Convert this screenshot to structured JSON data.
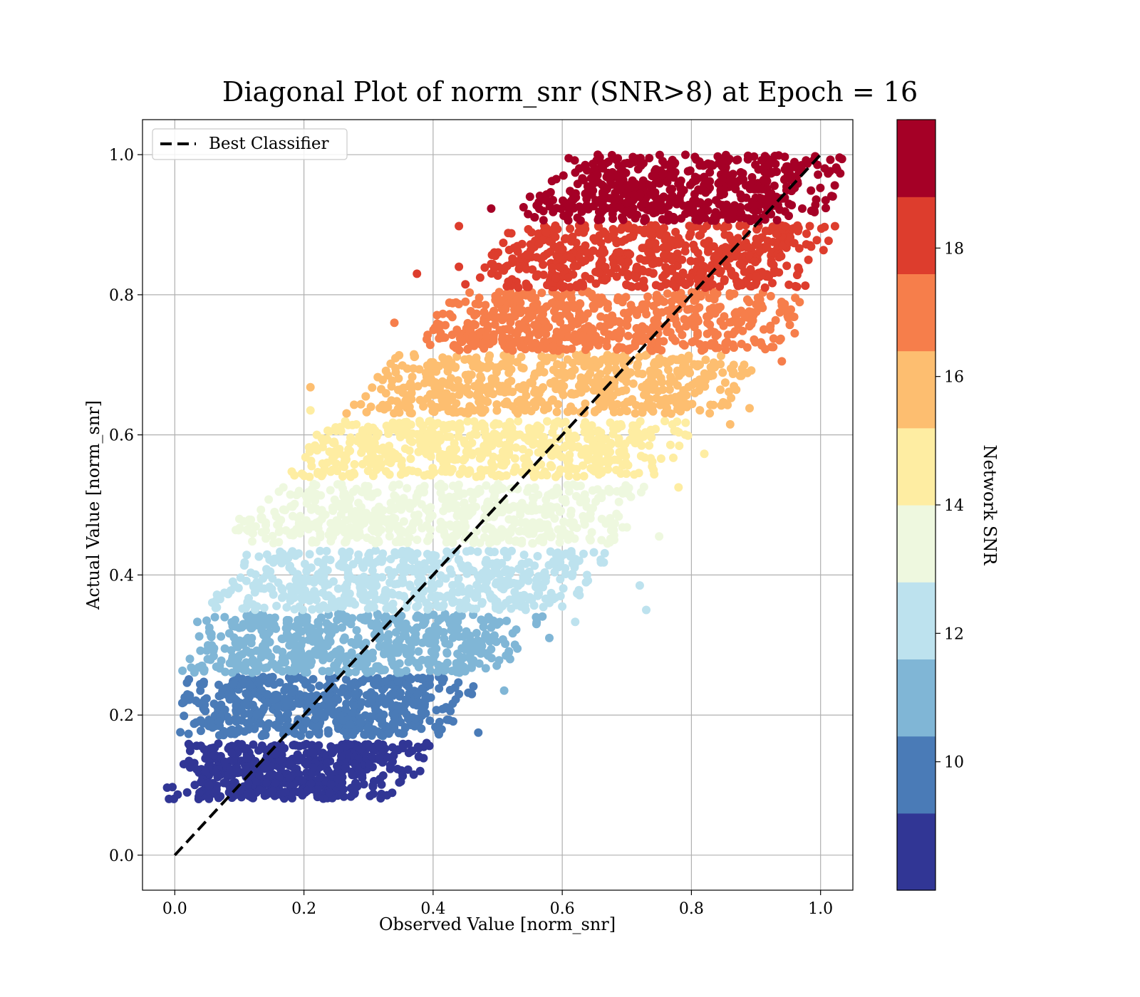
{
  "chart_data": {
    "type": "scatter",
    "title": "Diagonal Plot of norm_snr (SNR>8) at Epoch = 16",
    "xlabel": "Observed Value [norm_snr]",
    "ylabel": "Actual Value [norm_snr]",
    "xlim": [
      -0.05,
      1.05
    ],
    "ylim": [
      -0.05,
      1.05
    ],
    "xticks": [
      "0.0",
      "0.2",
      "0.4",
      "0.6",
      "0.8",
      "1.0"
    ],
    "yticks": [
      "0.0",
      "0.2",
      "0.4",
      "0.6",
      "0.8",
      "1.0"
    ],
    "grid": true,
    "legend": {
      "position": "top-left",
      "entries": [
        "Best Classifier"
      ]
    },
    "reference_line": {
      "name": "Best Classifier",
      "style": "dashed",
      "color": "#000000",
      "points": [
        [
          0,
          0
        ],
        [
          1,
          1
        ]
      ]
    },
    "colorbar": {
      "label": "Network SNR",
      "range": [
        8,
        20
      ],
      "ticks": [
        "10",
        "12",
        "14",
        "16",
        "18"
      ],
      "colors": [
        "#313695",
        "#4a7bb7",
        "#80b6d6",
        "#bde2ee",
        "#eef8df",
        "#feeda2",
        "#fdbe70",
        "#f67e4b",
        "#dd3d2d",
        "#a50026"
      ]
    },
    "bands": [
      {
        "snr": [
          8,
          9.2
        ],
        "y": [
          0.08,
          0.16
        ],
        "x_left": [
          0.02,
          0.05
        ],
        "x_right": [
          0.28,
          0.36
        ],
        "outliers": [
          [
            0.39,
            0.16
          ],
          [
            0.38,
            0.12
          ],
          [
            0.35,
            0.105
          ],
          [
            0.37,
            0.115
          ]
        ]
      },
      {
        "snr": [
          9.2,
          10.4
        ],
        "y": [
          0.17,
          0.255
        ],
        "x_left": [
          0.04,
          0.06
        ],
        "x_right": [
          0.37,
          0.43
        ],
        "outliers": [
          [
            0.47,
            0.175
          ],
          [
            0.46,
            0.23
          ],
          [
            0.44,
            0.23
          ],
          [
            0.41,
            0.19
          ]
        ]
      },
      {
        "snr": [
          10.4,
          11.6
        ],
        "y": [
          0.26,
          0.345
        ],
        "x_left": [
          0.05,
          0.09
        ],
        "x_right": [
          0.46,
          0.53
        ],
        "outliers": [
          [
            0.58,
            0.31
          ],
          [
            0.51,
            0.235
          ],
          [
            0.56,
            0.33
          ],
          [
            0.035,
            0.333
          ]
        ]
      },
      {
        "snr": [
          11.6,
          12.8
        ],
        "y": [
          0.35,
          0.435
        ],
        "x_left": [
          0.09,
          0.15
        ],
        "x_right": [
          0.56,
          0.63
        ],
        "outliers": [
          [
            0.73,
            0.35
          ],
          [
            0.72,
            0.385
          ],
          [
            0.62,
            0.333
          ],
          [
            0.6,
            0.355
          ],
          [
            0.66,
            0.418
          ]
        ]
      },
      {
        "snr": [
          12.8,
          14
        ],
        "y": [
          0.445,
          0.53
        ],
        "x_left": [
          0.11,
          0.2
        ],
        "x_right": [
          0.63,
          0.69
        ],
        "outliers": [
          [
            0.75,
            0.455
          ],
          [
            0.1,
            0.48
          ],
          [
            0.67,
            0.445
          ],
          [
            0.7,
            0.468
          ]
        ]
      },
      {
        "snr": [
          14,
          15.2
        ],
        "y": [
          0.54,
          0.62
        ],
        "x_left": [
          0.2,
          0.29
        ],
        "x_right": [
          0.7,
          0.77
        ],
        "outliers": [
          [
            0.21,
            0.635
          ],
          [
            0.22,
            0.6
          ],
          [
            0.24,
            0.605
          ],
          [
            0.78,
            0.525
          ],
          [
            0.82,
            0.573
          ]
        ]
      },
      {
        "snr": [
          15.2,
          16.4
        ],
        "y": [
          0.63,
          0.715
        ],
        "x_left": [
          0.3,
          0.38
        ],
        "x_right": [
          0.8,
          0.86
        ],
        "outliers": [
          [
            0.21,
            0.668
          ],
          [
            0.33,
            0.685
          ],
          [
            0.89,
            0.638
          ],
          [
            0.86,
            0.615
          ]
        ]
      },
      {
        "snr": [
          16.4,
          17.6
        ],
        "y": [
          0.72,
          0.805
        ],
        "x_left": [
          0.41,
          0.47
        ],
        "x_right": [
          0.88,
          0.94
        ],
        "outliers": [
          [
            0.34,
            0.76
          ],
          [
            0.94,
            0.705
          ],
          [
            0.96,
            0.745
          ],
          [
            0.95,
            0.767
          ]
        ]
      },
      {
        "snr": [
          17.6,
          18.8
        ],
        "y": [
          0.81,
          0.9
        ],
        "x_left": [
          0.5,
          0.56
        ],
        "x_right": [
          0.93,
          0.98
        ],
        "outliers": [
          [
            0.375,
            0.83
          ],
          [
            0.44,
            0.898
          ],
          [
            0.45,
            0.815
          ],
          [
            0.44,
            0.84
          ]
        ]
      },
      {
        "snr": [
          18.8,
          20
        ],
        "y": [
          0.905,
          1.0
        ],
        "x_left": [
          0.58,
          0.64
        ],
        "x_right": [
          0.96,
          0.99
        ],
        "outliers": [
          [
            0.49,
            0.923
          ],
          [
            0.54,
            0.925
          ],
          [
            0.61,
            0.995
          ],
          [
            0.55,
            0.94
          ]
        ]
      }
    ]
  }
}
